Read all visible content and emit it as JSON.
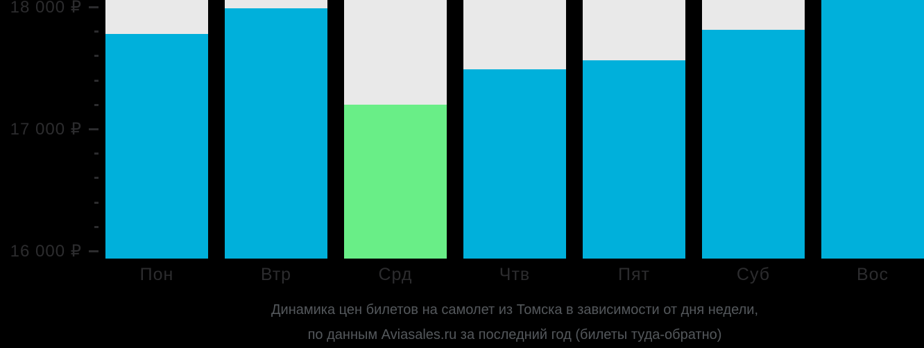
{
  "chart_data": {
    "type": "bar",
    "title": "",
    "xlabel": "",
    "ylabel": "",
    "categories": [
      "Пон",
      "Втр",
      "Срд",
      "Чтв",
      "Пят",
      "Суб",
      "Вос"
    ],
    "values": [
      17780,
      17990,
      17200,
      17490,
      17560,
      17810,
      18100
    ],
    "highlight_min_index": 2,
    "y_major_ticks": [
      {
        "value": 18000,
        "label": "18 000 ₽"
      },
      {
        "value": 17000,
        "label": "17 000 ₽"
      },
      {
        "value": 16000,
        "label": "16 000 ₽"
      }
    ],
    "y_minor_tick_step": 200,
    "ylim_visible": [
      16000,
      18057
    ],
    "grid": "off",
    "legend": "none",
    "note": "Last bar (Вос) is clipped by the top edge of the image; its value is ≥ 18 060 ₽"
  },
  "caption": {
    "line1": "Динамика цен билетов на самолет из Томска в зависимости от дня недели,",
    "line2": "по данным Aviasales.ru за последний год (билеты туда-обратно)"
  },
  "colors": {
    "background": "#000000",
    "bar_blue": "#00B0DB",
    "bar_green_min": "#69EE87",
    "column_bg_gray": "#E9E9E9",
    "axis_text": "#2C2C2E",
    "tick_dash": "#2C2C2E",
    "caption_text": "#54585C"
  }
}
